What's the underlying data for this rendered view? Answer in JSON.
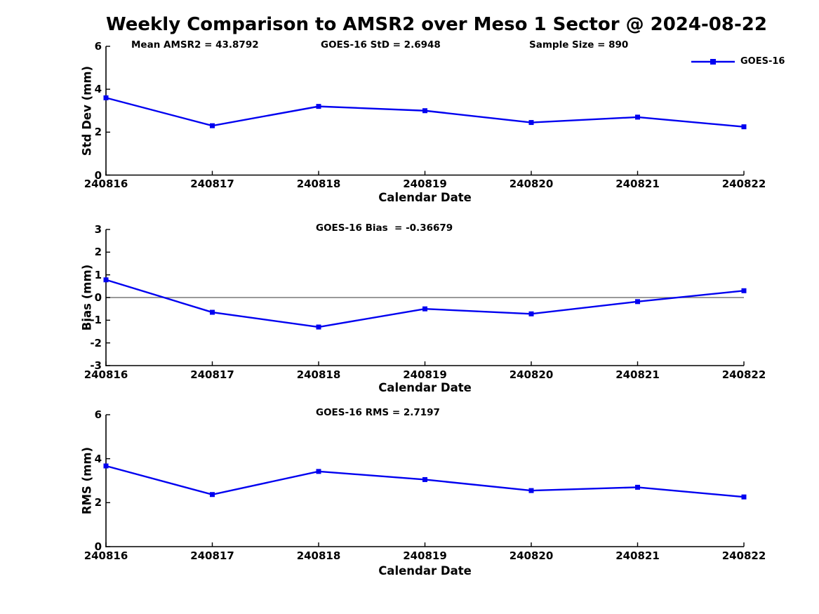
{
  "title": "Weekly Comparison to AMSR2 over Meso 1 Sector @ 2024-08-22",
  "colors": {
    "line": "#0000f0",
    "axis": "#000000",
    "zero_line": "#787878",
    "text": "#000000",
    "background": "#ffffff"
  },
  "legend": {
    "label": "GOES-16"
  },
  "chart_data": [
    {
      "type": "line",
      "annotations": [
        "Mean AMSR2 = 43.8792",
        "GOES-16 StD = 2.6948",
        "Sample Size = 890"
      ],
      "categories": [
        "240816",
        "240817",
        "240818",
        "240819",
        "240820",
        "240821",
        "240822"
      ],
      "series": [
        {
          "name": "GOES-16",
          "values": [
            3.6,
            2.3,
            3.2,
            3.0,
            2.45,
            2.7,
            2.25
          ]
        }
      ],
      "xlabel": "Calendar Date",
      "ylabel": "Std Dev (mm)",
      "ylim": [
        0,
        6
      ],
      "yticks": [
        0,
        2,
        4,
        6
      ],
      "grid": false,
      "zero_line": false,
      "legend_position": "top-right",
      "marker": "square"
    },
    {
      "type": "line",
      "annotations": [
        "GOES-16 Bias  = -0.36679"
      ],
      "categories": [
        "240816",
        "240817",
        "240818",
        "240819",
        "240820",
        "240821",
        "240822"
      ],
      "series": [
        {
          "name": "GOES-16",
          "values": [
            0.78,
            -0.65,
            -1.3,
            -0.5,
            -0.72,
            -0.18,
            0.3
          ]
        }
      ],
      "xlabel": "Calendar Date",
      "ylabel": "Bias (mm)",
      "ylim": [
        -3,
        3
      ],
      "yticks": [
        3,
        2,
        1,
        0,
        -1,
        -2,
        -3
      ],
      "grid": false,
      "zero_line": true,
      "legend_position": "none",
      "marker": "square"
    },
    {
      "type": "line",
      "annotations": [
        "GOES-16 RMS = 2.7197"
      ],
      "categories": [
        "240816",
        "240817",
        "240818",
        "240819",
        "240820",
        "240821",
        "240822"
      ],
      "series": [
        {
          "name": "GOES-16",
          "values": [
            3.67,
            2.37,
            3.42,
            3.05,
            2.55,
            2.7,
            2.26
          ]
        }
      ],
      "xlabel": "Calendar Date",
      "ylabel": "RMS (mm)",
      "ylim": [
        0,
        6
      ],
      "yticks": [
        0,
        2,
        4,
        6
      ],
      "grid": false,
      "zero_line": false,
      "legend_position": "none",
      "marker": "square"
    }
  ]
}
